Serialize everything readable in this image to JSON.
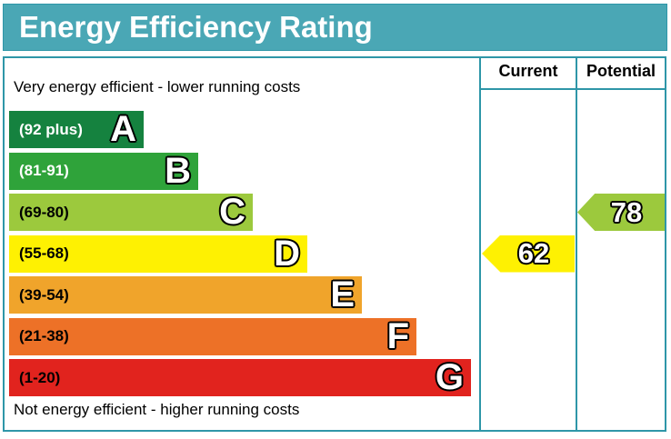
{
  "title": "Energy Efficiency Rating",
  "header": {
    "current": "Current",
    "potential": "Potential"
  },
  "notes": {
    "top": "Very energy efficient - lower running costs",
    "bottom": "Not energy efficient - higher running costs"
  },
  "bands": [
    {
      "letter": "A",
      "range": "(92 plus)",
      "color": "#15823f",
      "text_color": "#ffffff"
    },
    {
      "letter": "B",
      "range": "(81-91)",
      "color": "#2fa33a",
      "text_color": "#ffffff"
    },
    {
      "letter": "C",
      "range": "(69-80)",
      "color": "#9cc93d",
      "text_color": "#000000"
    },
    {
      "letter": "D",
      "range": "(55-68)",
      "color": "#fef102",
      "text_color": "#000000"
    },
    {
      "letter": "E",
      "range": "(39-54)",
      "color": "#f0a42b",
      "text_color": "#000000"
    },
    {
      "letter": "F",
      "range": "(21-38)",
      "color": "#ed7127",
      "text_color": "#000000"
    },
    {
      "letter": "G",
      "range": "(1-20)",
      "color": "#e1231e",
      "text_color": "#000000"
    }
  ],
  "ratings": {
    "current": {
      "value": "62",
      "band": "D",
      "color": "#fef102"
    },
    "potential": {
      "value": "78",
      "band": "C",
      "color": "#9cc93d"
    }
  },
  "colors": {
    "title_bg": "#4aa7b5",
    "border": "#2e96a8"
  },
  "chart_data": {
    "type": "bar",
    "title": "Energy Efficiency Rating",
    "categories": [
      "A",
      "B",
      "C",
      "D",
      "E",
      "F",
      "G"
    ],
    "category_ranges": [
      "92 plus",
      "81-91",
      "69-80",
      "55-68",
      "39-54",
      "21-38",
      "1-20"
    ],
    "band_colors": [
      "#15823f",
      "#2fa33a",
      "#9cc93d",
      "#fef102",
      "#f0a42b",
      "#ed7127",
      "#e1231e"
    ],
    "series": [
      {
        "name": "Current",
        "value": 62,
        "band": "D"
      },
      {
        "name": "Potential",
        "value": 78,
        "band": "C"
      }
    ],
    "value_range": [
      1,
      100
    ],
    "annotations": [
      "Very energy efficient - lower running costs",
      "Not energy efficient - higher running costs"
    ],
    "legend_position": "top-right-columns",
    "grid": false
  }
}
